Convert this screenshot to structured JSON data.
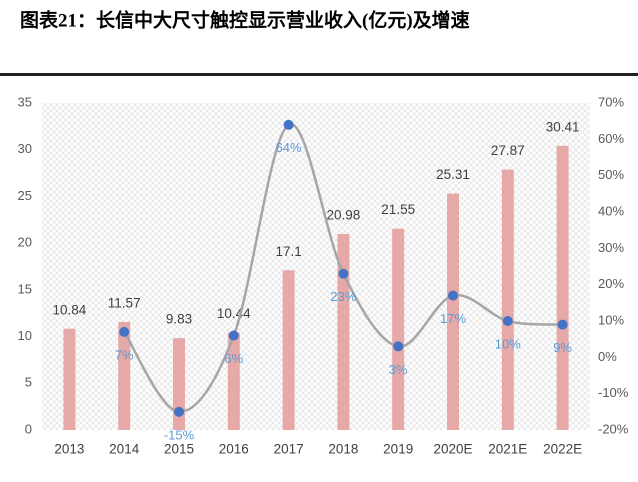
{
  "chart_data": {
    "type": "bar",
    "title": "图表21：长信中大尺寸触控显示营业收入(亿元)及增速",
    "categories": [
      "2013",
      "2014",
      "2015",
      "2016",
      "2017",
      "2018",
      "2019",
      "2020E",
      "2021E",
      "2022E"
    ],
    "series": [
      {
        "type": "bar",
        "color": "#e6a9a8",
        "values": [
          10.84,
          11.57,
          9.83,
          10.44,
          17.1,
          20.98,
          21.55,
          25.31,
          27.87,
          30.41
        ]
      },
      {
        "type": "line",
        "axis": "y2",
        "color": "#a6a6a6",
        "marker_color": "#4472c4",
        "values": [
          null,
          7,
          -15,
          6,
          64,
          23,
          3,
          17,
          10,
          9
        ],
        "value_labels": [
          null,
          "7%",
          "-15%",
          "6%",
          "64%",
          "23%",
          "3%",
          "17%",
          "10%",
          "9%"
        ]
      }
    ],
    "ylim": [
      0,
      35
    ],
    "yticks": [
      0,
      5,
      10,
      15,
      20,
      25,
      30,
      35
    ],
    "y2lim": [
      -20,
      70
    ],
    "y2ticks": [
      {
        "value": -20,
        "label": "-20%"
      },
      {
        "value": -10,
        "label": "-10%"
      },
      {
        "value": 0,
        "label": "0%"
      },
      {
        "value": 10,
        "label": "10%"
      },
      {
        "value": 20,
        "label": "20%"
      },
      {
        "value": 30,
        "label": "30%"
      },
      {
        "value": 40,
        "label": "40%"
      },
      {
        "value": 50,
        "label": "50%"
      },
      {
        "value": 60,
        "label": "60%"
      },
      {
        "value": 70,
        "label": "70%"
      }
    ],
    "grid": false
  }
}
